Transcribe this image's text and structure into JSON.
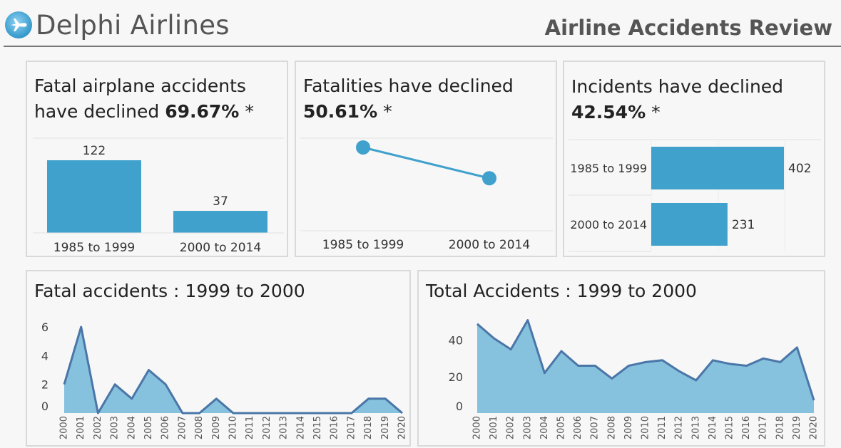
{
  "header": {
    "brand": "Delphi Airlines",
    "report_title": "Airline Accidents Review",
    "logo_icon": "airplane-icon",
    "accent": "#3fa1cc"
  },
  "panels": {
    "fatal_accidents": {
      "title_line1": "Fatal airplane accidents",
      "title_line2": "have declined",
      "pct": "69.67%",
      "asterisk": "*"
    },
    "fatalities": {
      "title_line1": "Fatalities have declined",
      "pct": "50.61%",
      "asterisk": "*"
    },
    "incidents": {
      "title_line1": "Incidents have declined",
      "pct": "42.54%",
      "asterisk": "*"
    },
    "fatal_trend": {
      "title": "Fatal accidents : 1999 to 2000"
    },
    "total_trend": {
      "title": "Total Accidents : 1999 to 2000"
    }
  },
  "chart_data": [
    {
      "type": "bar",
      "categories": [
        "1985 to 1999",
        "2000 to 2014"
      ],
      "values": [
        122,
        37
      ],
      "data_labels": [
        "122",
        "37"
      ],
      "ylim": [
        0,
        122
      ],
      "color": "#3fa1cc"
    },
    {
      "type": "line",
      "categories": [
        "1985 to 1999",
        "2000 to 2014"
      ],
      "values": [
        100,
        49.39
      ],
      "color": "#3fa1cc"
    },
    {
      "type": "bar",
      "orientation": "horizontal",
      "categories": [
        "1985 to 1999",
        "2000 to 2014"
      ],
      "values": [
        402,
        231
      ],
      "data_labels": [
        "402",
        "231"
      ],
      "xlim": [
        0,
        402
      ],
      "color": "#3fa1cc"
    },
    {
      "type": "area",
      "x": [
        "2000",
        "2001",
        "2002",
        "2003",
        "2004",
        "2005",
        "2006",
        "2007",
        "2008",
        "2009",
        "2010",
        "2011",
        "2012",
        "2013",
        "2014",
        "2015",
        "2016",
        "2017",
        "2018",
        "2019",
        "2020"
      ],
      "values": [
        2,
        6,
        0,
        2,
        1,
        3,
        2,
        0,
        0,
        1,
        0,
        0,
        0,
        0,
        0,
        0,
        0,
        0,
        1,
        1,
        0
      ],
      "yticks": [
        "0",
        "2",
        "4",
        "6"
      ],
      "ylim": [
        0,
        6
      ],
      "fill": "#86c1de",
      "line": "#4a76a8"
    },
    {
      "type": "area",
      "x": [
        "2000",
        "2001",
        "2002",
        "2003",
        "2004",
        "2005",
        "2006",
        "2007",
        "2008",
        "2009",
        "2010",
        "2011",
        "2012",
        "2013",
        "2014",
        "2015",
        "2016",
        "2017",
        "2018",
        "2019",
        "2020"
      ],
      "values": [
        49,
        41,
        35,
        51,
        22,
        34,
        26,
        26,
        19,
        26,
        28,
        29,
        23,
        18,
        29,
        27,
        26,
        30,
        28,
        36,
        7
      ],
      "yticks": [
        "0",
        "20",
        "40"
      ],
      "ylim": [
        0,
        52
      ],
      "fill": "#86c1de",
      "line": "#4a76a8"
    }
  ]
}
